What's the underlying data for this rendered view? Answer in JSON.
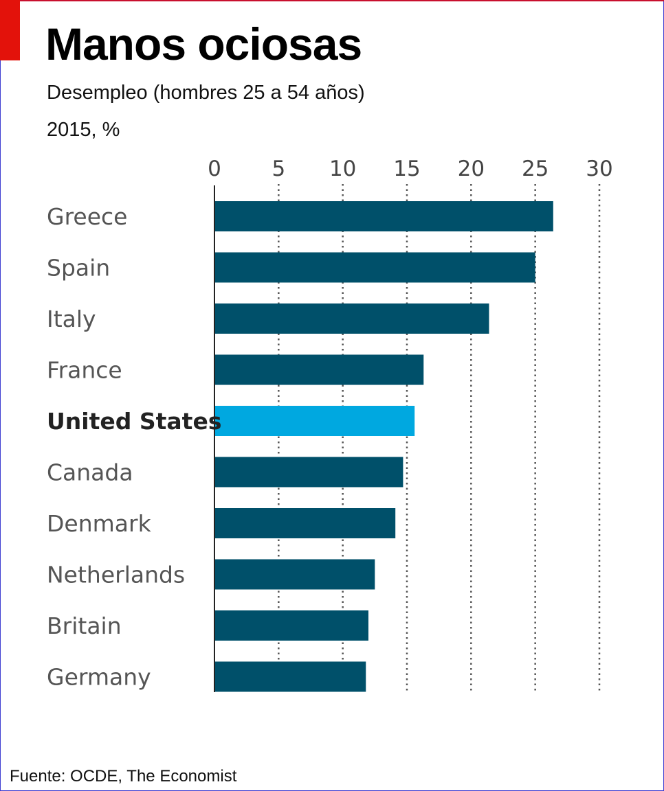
{
  "header": {
    "title": "Manos ociosas",
    "subtitle": "Desempleo (hombres 25 a 54 años)",
    "subtitle_2": "2015, %"
  },
  "footer": {
    "source": "Fuente: OCDE, The Economist"
  },
  "colors": {
    "accent": "#e3120b",
    "bar": "#00506a",
    "highlight_bar": "#00a8e0",
    "grid": "#555555"
  },
  "chart_data": {
    "type": "bar",
    "orientation": "horizontal",
    "title": "Manos ociosas",
    "subtitle": "Desempleo (hombres 25 a 54 años)",
    "ylabel": "2015, %",
    "categories": [
      "Greece",
      "Spain",
      "Italy",
      "France",
      "United States",
      "Canada",
      "Denmark",
      "Netherlands",
      "Britain",
      "Germany"
    ],
    "values": [
      26.4,
      25.0,
      21.4,
      16.3,
      15.6,
      14.7,
      14.1,
      12.5,
      12.0,
      11.8
    ],
    "highlight": "United States",
    "xlim": [
      0,
      30
    ],
    "xticks": [
      0,
      5,
      10,
      15,
      20,
      25,
      30
    ],
    "grid": "vertical dotted",
    "axis_position": "top"
  }
}
